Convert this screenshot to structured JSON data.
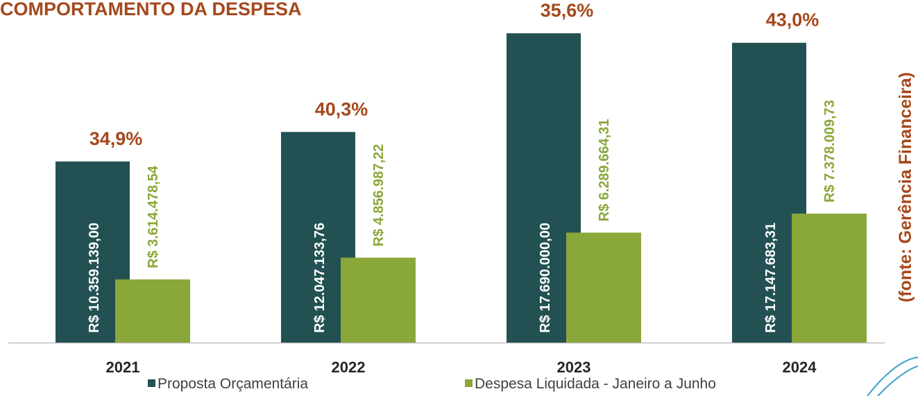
{
  "chart_data": {
    "type": "bar",
    "title": "COMPORTAMENTO DA DESPESA",
    "source": "(fonte: Gerência Financeira)",
    "categories": [
      "2021",
      "2022",
      "2023",
      "2024"
    ],
    "series": [
      {
        "name": "Proposta Orçamentária",
        "color": "#235153",
        "values": [
          10359139.0,
          12047133.76,
          17690000.0,
          17147683.31
        ],
        "value_labels": [
          "R$ 10.359.139,00",
          "R$ 12.047.133,76",
          "R$ 17.690.000,00",
          "R$ 17.147.683,31"
        ]
      },
      {
        "name": "Despesa Liquidada - Janeiro a Junho",
        "color": "#8aa739",
        "values": [
          3614478.54,
          4856987.22,
          6289664.31,
          7378009.73
        ],
        "value_labels": [
          "R$ 3.614.478,54",
          "R$ 4.856.987,22",
          "R$ 6.289.664,31",
          "R$ 7.378.009,73"
        ]
      }
    ],
    "annotations": [
      "34,9%",
      "40,3%",
      "35,6%",
      "43,0%"
    ],
    "annotation_color": "#a5481c"
  }
}
